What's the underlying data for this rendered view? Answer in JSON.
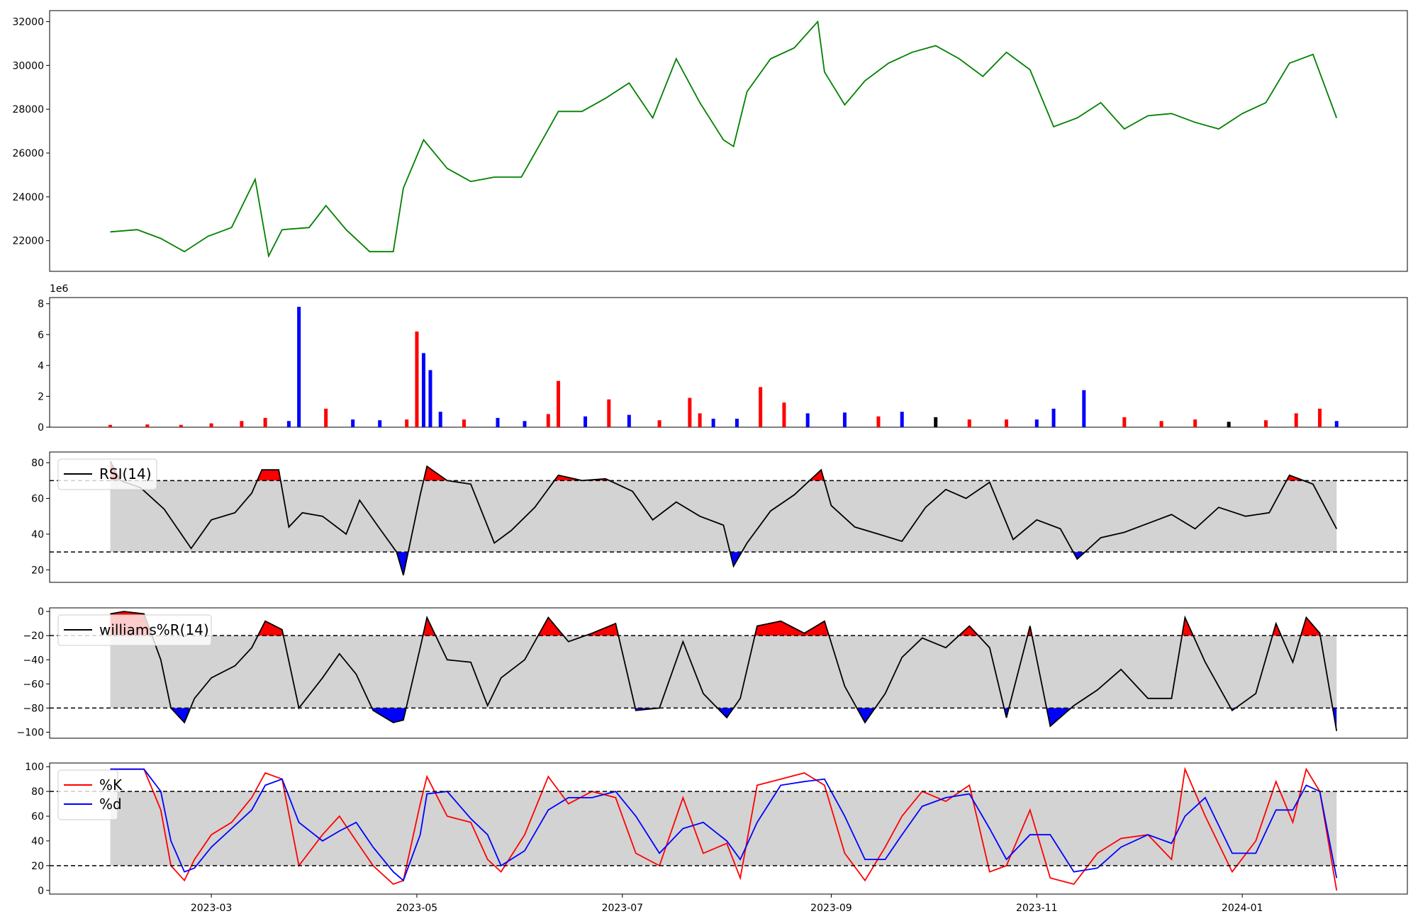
{
  "x_ticks": [
    "2023-03",
    "2023-05",
    "2023-07",
    "2023-09",
    "2023-11",
    "2024-01"
  ],
  "chart_data": [
    {
      "type": "line",
      "panel": "price",
      "ylim": [
        20600,
        32500
      ],
      "y_ticks": [
        22000,
        24000,
        26000,
        28000,
        30000,
        32000
      ],
      "line_color": "#008000",
      "x_range": [
        "2023-01-12",
        "2024-02-19"
      ],
      "x": [
        "2023-01-30",
        "2023-02-07",
        "2023-02-14",
        "2023-02-21",
        "2023-02-28",
        "2023-03-07",
        "2023-03-14",
        "2023-03-18",
        "2023-03-22",
        "2023-03-30",
        "2023-04-04",
        "2023-04-10",
        "2023-04-17",
        "2023-04-24",
        "2023-04-27",
        "2023-05-03",
        "2023-05-10",
        "2023-05-17",
        "2023-05-24",
        "2023-06-01",
        "2023-06-08",
        "2023-06-12",
        "2023-06-19",
        "2023-06-26",
        "2023-07-03",
        "2023-07-10",
        "2023-07-17",
        "2023-07-24",
        "2023-07-31",
        "2023-08-03",
        "2023-08-07",
        "2023-08-14",
        "2023-08-21",
        "2023-08-28",
        "2023-08-30",
        "2023-09-05",
        "2023-09-11",
        "2023-09-18",
        "2023-09-25",
        "2023-10-02",
        "2023-10-09",
        "2023-10-16",
        "2023-10-23",
        "2023-10-30",
        "2023-11-06",
        "2023-11-13",
        "2023-11-20",
        "2023-11-27",
        "2023-12-04",
        "2023-12-11",
        "2023-12-18",
        "2023-12-25",
        "2024-01-01",
        "2024-01-08",
        "2024-01-15",
        "2024-01-22",
        "2024-01-29"
      ],
      "values": [
        22400,
        22500,
        22100,
        21500,
        22200,
        22600,
        24800,
        21300,
        22500,
        22600,
        23600,
        22500,
        21500,
        21500,
        24400,
        26600,
        25300,
        24700,
        24900,
        24900,
        26800,
        27900,
        27900,
        28500,
        29200,
        27600,
        30300,
        28300,
        26600,
        26300,
        28800,
        30300,
        30800,
        32000,
        29700,
        28200,
        29300,
        30100,
        30600,
        30900,
        30300,
        29500,
        30600,
        29800,
        27200,
        27600,
        28300,
        27100,
        27700,
        27800,
        27400,
        27100,
        27800,
        28300,
        30100,
        30500,
        27600
      ]
    },
    {
      "type": "bar",
      "panel": "volume",
      "ylim": [
        0,
        8400000
      ],
      "y_ticks": [
        0,
        2,
        4,
        6,
        8
      ],
      "y_multiplier_label": "1e6",
      "up_color": "#ff0000",
      "down_color": "#0000ff",
      "flat_color": "#000000",
      "x": [
        "2023-01-30",
        "2023-02-10",
        "2023-02-20",
        "2023-03-01",
        "2023-03-10",
        "2023-03-17",
        "2023-03-24",
        "2023-03-27",
        "2023-04-04",
        "2023-04-12",
        "2023-04-20",
        "2023-04-28",
        "2023-05-01",
        "2023-05-03",
        "2023-05-05",
        "2023-05-08",
        "2023-05-15",
        "2023-05-25",
        "2023-06-02",
        "2023-06-09",
        "2023-06-12",
        "2023-06-20",
        "2023-06-27",
        "2023-07-03",
        "2023-07-12",
        "2023-07-21",
        "2023-07-24",
        "2023-07-28",
        "2023-08-04",
        "2023-08-11",
        "2023-08-18",
        "2023-08-25",
        "2023-09-05",
        "2023-09-15",
        "2023-09-22",
        "2023-10-02",
        "2023-10-12",
        "2023-10-23",
        "2023-11-01",
        "2023-11-06",
        "2023-11-15",
        "2023-11-27",
        "2023-12-08",
        "2023-12-18",
        "2023-12-28",
        "2024-01-08",
        "2024-01-17",
        "2024-01-24",
        "2024-01-29"
      ],
      "values": [
        150000,
        180000,
        150000,
        250000,
        400000,
        600000,
        400000,
        7800000,
        1200000,
        500000,
        450000,
        500000,
        6200000,
        4800000,
        3700000,
        1000000,
        500000,
        600000,
        400000,
        850000,
        3000000,
        700000,
        1800000,
        800000,
        450000,
        1900000,
        900000,
        550000,
        550000,
        2600000,
        1600000,
        900000,
        950000,
        700000,
        1000000,
        650000,
        500000,
        500000,
        500000,
        1200000,
        2400000,
        650000,
        400000,
        500000,
        350000,
        450000,
        900000,
        1200000,
        400000
      ],
      "directions": [
        "up",
        "up",
        "up",
        "up",
        "up",
        "up",
        "down",
        "down",
        "up",
        "down",
        "down",
        "up",
        "up",
        "down",
        "down",
        "down",
        "up",
        "down",
        "down",
        "up",
        "up",
        "down",
        "up",
        "down",
        "up",
        "up",
        "up",
        "down",
        "down",
        "up",
        "up",
        "down",
        "down",
        "up",
        "down",
        "flat",
        "up",
        "up",
        "down",
        "down",
        "down",
        "up",
        "up",
        "up",
        "flat",
        "up",
        "up",
        "up",
        "down"
      ]
    },
    {
      "type": "line",
      "panel": "rsi",
      "legend": [
        "RSI(14)"
      ],
      "ylim": [
        13,
        86
      ],
      "y_ticks": [
        20,
        40,
        60,
        80
      ],
      "thresholds": [
        30,
        70
      ],
      "band_color": "#d3d3d3",
      "line_color": "#000000",
      "overbought_fill": "#ff0000",
      "oversold_fill": "#0000ff",
      "x": [
        "2023-01-30",
        "2023-02-02",
        "2023-02-08",
        "2023-02-15",
        "2023-02-23",
        "2023-03-01",
        "2023-03-08",
        "2023-03-13",
        "2023-03-16",
        "2023-03-21",
        "2023-03-24",
        "2023-03-28",
        "2023-04-03",
        "2023-04-10",
        "2023-04-14",
        "2023-04-20",
        "2023-04-25",
        "2023-04-27",
        "2023-05-02",
        "2023-05-04",
        "2023-05-10",
        "2023-05-17",
        "2023-05-24",
        "2023-05-29",
        "2023-06-05",
        "2023-06-12",
        "2023-06-19",
        "2023-06-26",
        "2023-07-04",
        "2023-07-10",
        "2023-07-17",
        "2023-07-24",
        "2023-07-31",
        "2023-08-03",
        "2023-08-07",
        "2023-08-14",
        "2023-08-21",
        "2023-08-29",
        "2023-09-01",
        "2023-09-08",
        "2023-09-15",
        "2023-09-22",
        "2023-09-29",
        "2023-10-05",
        "2023-10-11",
        "2023-10-18",
        "2023-10-25",
        "2023-11-01",
        "2023-11-08",
        "2023-11-13",
        "2023-11-20",
        "2023-11-27",
        "2023-12-04",
        "2023-12-11",
        "2023-12-18",
        "2023-12-25",
        "2024-01-02",
        "2024-01-09",
        "2024-01-15",
        "2024-01-22",
        "2024-01-29"
      ],
      "values": [
        81,
        70,
        66,
        54,
        32,
        48,
        52,
        63,
        76,
        76,
        44,
        52,
        50,
        40,
        59,
        43,
        30,
        17,
        62,
        78,
        70,
        68,
        35,
        42,
        55,
        73,
        70,
        71,
        64,
        48,
        58,
        50,
        45,
        22,
        35,
        53,
        62,
        76,
        56,
        44,
        40,
        36,
        55,
        65,
        60,
        69,
        37,
        48,
        43,
        26,
        38,
        41,
        46,
        51,
        43,
        55,
        50,
        52,
        73,
        68,
        43
      ]
    },
    {
      "type": "line",
      "panel": "williams",
      "legend": [
        "williams%R(14)"
      ],
      "ylim": [
        -105,
        3
      ],
      "y_ticks": [
        0,
        -20,
        -40,
        -60,
        -80,
        -100
      ],
      "thresholds": [
        -20,
        -80
      ],
      "band_color": "#d3d3d3",
      "line_color": "#000000",
      "overbought_fill": "#ff0000",
      "oversold_fill": "#0000ff",
      "x": [
        "2023-01-30",
        "2023-02-03",
        "2023-02-09",
        "2023-02-14",
        "2023-02-17",
        "2023-02-21",
        "2023-02-24",
        "2023-03-01",
        "2023-03-08",
        "2023-03-13",
        "2023-03-17",
        "2023-03-22",
        "2023-03-27",
        "2023-04-03",
        "2023-04-08",
        "2023-04-13",
        "2023-04-18",
        "2023-04-24",
        "2023-04-27",
        "2023-05-02",
        "2023-05-04",
        "2023-05-10",
        "2023-05-17",
        "2023-05-22",
        "2023-05-26",
        "2023-06-02",
        "2023-06-09",
        "2023-06-15",
        "2023-06-22",
        "2023-06-29",
        "2023-07-05",
        "2023-07-12",
        "2023-07-19",
        "2023-07-25",
        "2023-08-01",
        "2023-08-05",
        "2023-08-10",
        "2023-08-17",
        "2023-08-24",
        "2023-08-30",
        "2023-09-05",
        "2023-09-11",
        "2023-09-17",
        "2023-09-22",
        "2023-09-28",
        "2023-10-05",
        "2023-10-12",
        "2023-10-18",
        "2023-10-23",
        "2023-10-30",
        "2023-11-05",
        "2023-11-12",
        "2023-11-19",
        "2023-11-26",
        "2023-12-04",
        "2023-12-11",
        "2023-12-15",
        "2023-12-21",
        "2023-12-29",
        "2024-01-05",
        "2024-01-11",
        "2024-01-16",
        "2024-01-20",
        "2024-01-24",
        "2024-01-29"
      ],
      "values": [
        -2,
        0,
        -2,
        -40,
        -80,
        -92,
        -72,
        -55,
        -45,
        -30,
        -8,
        -15,
        -80,
        -55,
        -35,
        -52,
        -82,
        -92,
        -90,
        -30,
        -5,
        -40,
        -42,
        -78,
        -55,
        -40,
        -5,
        -25,
        -18,
        -10,
        -82,
        -80,
        -25,
        -68,
        -88,
        -72,
        -12,
        -8,
        -18,
        -8,
        -62,
        -92,
        -68,
        -38,
        -22,
        -30,
        -12,
        -30,
        -88,
        -12,
        -95,
        -78,
        -65,
        -48,
        -72,
        -72,
        -5,
        -42,
        -82,
        -68,
        -10,
        -42,
        -5,
        -18,
        -99
      ]
    },
    {
      "type": "line",
      "panel": "stochastic",
      "legend": [
        "%K",
        "%d"
      ],
      "ylim": [
        -3,
        103
      ],
      "y_ticks": [
        0,
        20,
        40,
        60,
        80,
        100
      ],
      "thresholds": [
        20,
        80
      ],
      "band_color": "#d3d3d3",
      "x": [
        "2023-01-30",
        "2023-02-03",
        "2023-02-09",
        "2023-02-14",
        "2023-02-17",
        "2023-02-21",
        "2023-02-24",
        "2023-03-01",
        "2023-03-07",
        "2023-03-13",
        "2023-03-17",
        "2023-03-22",
        "2023-03-27",
        "2023-04-03",
        "2023-04-08",
        "2023-04-13",
        "2023-04-18",
        "2023-04-24",
        "2023-04-27",
        "2023-05-02",
        "2023-05-04",
        "2023-05-10",
        "2023-05-17",
        "2023-05-22",
        "2023-05-26",
        "2023-06-02",
        "2023-06-09",
        "2023-06-15",
        "2023-06-22",
        "2023-06-29",
        "2023-07-05",
        "2023-07-12",
        "2023-07-19",
        "2023-07-25",
        "2023-08-01",
        "2023-08-05",
        "2023-08-10",
        "2023-08-17",
        "2023-08-24",
        "2023-08-30",
        "2023-09-05",
        "2023-09-11",
        "2023-09-17",
        "2023-09-22",
        "2023-09-28",
        "2023-10-05",
        "2023-10-12",
        "2023-10-18",
        "2023-10-23",
        "2023-10-30",
        "2023-11-05",
        "2023-11-12",
        "2023-11-19",
        "2023-11-26",
        "2023-12-04",
        "2023-12-11",
        "2023-12-15",
        "2023-12-21",
        "2023-12-29",
        "2024-01-05",
        "2024-01-11",
        "2024-01-16",
        "2024-01-20",
        "2024-01-24",
        "2024-01-29"
      ],
      "series": [
        {
          "name": "%K",
          "color": "#ff0000",
          "values": [
            98,
            98,
            98,
            65,
            20,
            8,
            25,
            45,
            55,
            75,
            95,
            90,
            20,
            45,
            60,
            40,
            20,
            5,
            8,
            70,
            92,
            60,
            55,
            25,
            15,
            45,
            92,
            70,
            80,
            75,
            30,
            20,
            75,
            30,
            38,
            10,
            85,
            90,
            95,
            85,
            30,
            8,
            35,
            60,
            80,
            72,
            85,
            15,
            20,
            65,
            10,
            5,
            30,
            42,
            45,
            25,
            98,
            60,
            15,
            40,
            88,
            55,
            98,
            80,
            0
          ]
        },
        {
          "name": "%d",
          "color": "#0000ff",
          "values": [
            98,
            98,
            98,
            80,
            40,
            15,
            18,
            35,
            50,
            65,
            85,
            90,
            55,
            40,
            48,
            55,
            35,
            15,
            8,
            45,
            78,
            80,
            58,
            45,
            20,
            32,
            65,
            75,
            75,
            80,
            60,
            30,
            50,
            55,
            40,
            25,
            55,
            85,
            88,
            90,
            60,
            25,
            25,
            45,
            68,
            75,
            78,
            50,
            25,
            45,
            45,
            15,
            18,
            35,
            45,
            38,
            60,
            75,
            30,
            30,
            65,
            65,
            85,
            80,
            10
          ]
        }
      ]
    }
  ]
}
